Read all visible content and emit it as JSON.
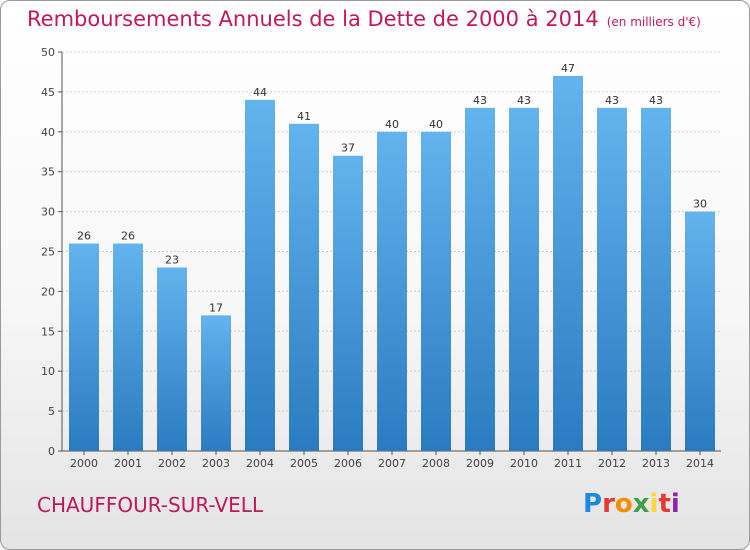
{
  "title": "Remboursements Annuels de la Dette de 2000 à 2014",
  "title_unit": "(en milliers d'€)",
  "city": "CHAUFFOUR-SUR-VELL",
  "logo": {
    "letters": [
      "P",
      "r",
      "o",
      "x",
      "i",
      "t",
      "i"
    ],
    "colors": [
      "#1e88e5",
      "#e53935",
      "#fb8c00",
      "#43a047",
      "#fdd835",
      "#e53935",
      "#8e24aa"
    ]
  },
  "colors": {
    "bar_light": "#63b3ee",
    "bar_dark": "#2a7bc0",
    "accent": "#c2185b"
  },
  "chart_data": {
    "type": "bar",
    "categories": [
      "2000",
      "2001",
      "2002",
      "2003",
      "2004",
      "2005",
      "2006",
      "2007",
      "2008",
      "2009",
      "2010",
      "2011",
      "2012",
      "2013",
      "2014"
    ],
    "values": [
      26,
      26,
      23,
      17,
      44,
      41,
      37,
      40,
      40,
      43,
      43,
      47,
      43,
      43,
      30
    ],
    "ylim": [
      0,
      50
    ],
    "yticks": [
      0,
      5,
      10,
      15,
      20,
      25,
      30,
      35,
      40,
      45,
      50
    ],
    "grid": true
  }
}
